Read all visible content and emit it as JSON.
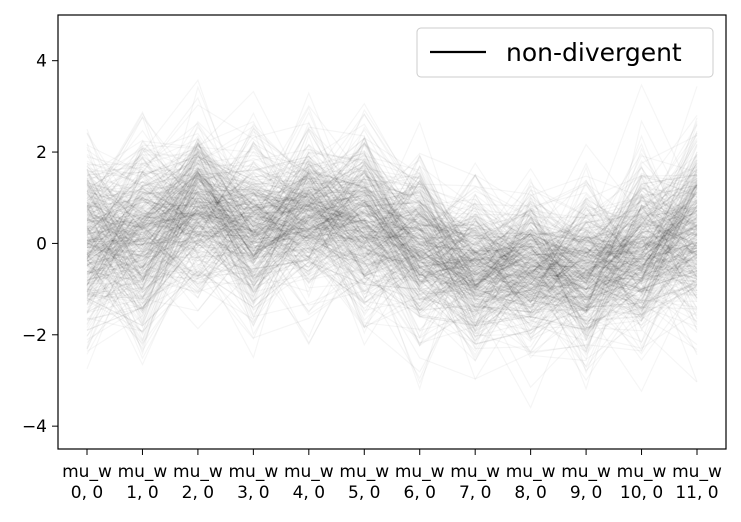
{
  "chart_data": {
    "type": "line",
    "subtype": "parallel-coordinates",
    "title": "",
    "xlabel": "",
    "ylabel": "",
    "categories": [
      "mu_w\n0, 0",
      "mu_w\n1, 0",
      "mu_w\n2, 0",
      "mu_w\n3, 0",
      "mu_w\n4, 0",
      "mu_w\n5, 0",
      "mu_w\n6, 0",
      "mu_w\n7, 0",
      "mu_w\n8, 0",
      "mu_w\n9, 0",
      "mu_w\n10, 0",
      "mu_w\n11, 0"
    ],
    "ylim": [
      -4.5,
      5.0
    ],
    "yticks": [
      -4,
      -2,
      0,
      2,
      4
    ],
    "ytick_labels": [
      "−4",
      "−2",
      "0",
      "2",
      "4"
    ],
    "grid": false,
    "legend": {
      "position": "top-right",
      "entries": [
        {
          "label": "non-divergent",
          "color": "#000000"
        }
      ]
    },
    "line_color": "#000000",
    "line_opacity": 0.04,
    "summary": {
      "approx_draw_count": 400,
      "means": [
        0.0,
        0.1,
        0.8,
        0.3,
        0.7,
        0.4,
        -0.1,
        -0.6,
        -0.5,
        -0.6,
        -0.2,
        0.3
      ],
      "stds": [
        1.0,
        1.0,
        0.85,
        0.95,
        0.85,
        0.95,
        0.9,
        0.9,
        0.85,
        0.9,
        0.95,
        1.0
      ]
    },
    "series": [
      {
        "name": "",
        "values": [
          0.5,
          0.9,
          0.8,
          1.1,
          0.4,
          0.0,
          0.3,
          -0.4,
          0.2,
          -0.3,
          -0.5,
          0.9
        ]
      },
      {
        "name": "",
        "values": [
          -0.8,
          -0.5,
          0.4,
          -0.6,
          0.9,
          0.5,
          -1.2,
          -1.5,
          -0.9,
          -1.0,
          0.4,
          -0.6
        ]
      },
      {
        "name": "",
        "values": [
          1.7,
          0.3,
          1.2,
          0.8,
          1.5,
          -0.3,
          0.6,
          0.1,
          0.2,
          -0.8,
          1.3,
          1.5
        ]
      },
      {
        "name": "",
        "values": [
          -1.9,
          -1.4,
          0.0,
          -1.0,
          0.2,
          -0.7,
          -1.6,
          -1.8,
          -1.6,
          -1.9,
          -1.0,
          -0.6
        ]
      },
      {
        "name": "",
        "values": [
          0.2,
          1.5,
          1.9,
          1.4,
          1.0,
          1.8,
          0.4,
          0.4,
          -0.2,
          0.5,
          -0.1,
          1.1
        ]
      },
      {
        "name": "",
        "values": [
          1.1,
          -0.6,
          0.7,
          0.0,
          0.3,
          0.9,
          0.0,
          -1.0,
          -1.4,
          -0.2,
          0.6,
          -1.2
        ]
      },
      {
        "name": "",
        "values": [
          -0.3,
          0.6,
          1.5,
          1.6,
          1.9,
          0.8,
          0.9,
          -0.2,
          0.3,
          -0.7,
          -0.8,
          0.2
        ]
      },
      {
        "name": "",
        "values": [
          -1.2,
          -1.8,
          -0.6,
          -1.4,
          -0.4,
          -0.9,
          -1.0,
          -2.2,
          -1.9,
          -1.4,
          -1.3,
          -0.9
        ]
      }
    ]
  },
  "legend_label": "non-divergent"
}
